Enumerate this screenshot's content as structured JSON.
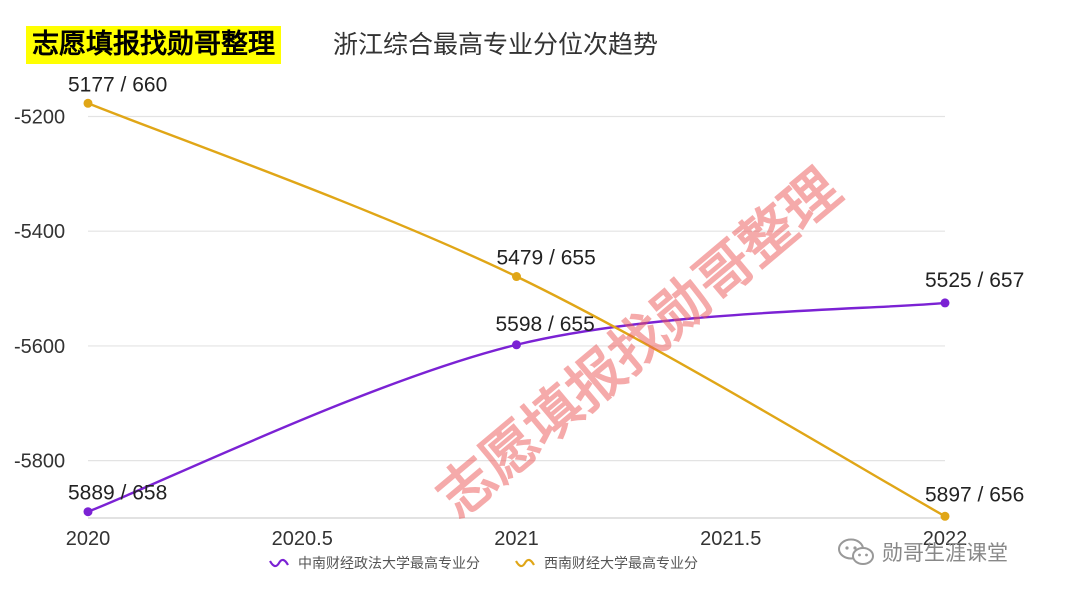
{
  "header": {
    "badge": "志愿填报找勋哥整理",
    "subtitle": "浙江综合最高专业分位次趋势"
  },
  "watermark": {
    "text": "志愿填报找勋哥整理"
  },
  "footer": {
    "account": "勋哥生涯课堂",
    "icon": "wechat-icon"
  },
  "chart_data": {
    "type": "line",
    "title": "",
    "xlabel": "",
    "ylabel": "",
    "x_ticks": [
      2020,
      2020.5,
      2021,
      2021.5,
      2022
    ],
    "y_ticks": [
      -5200,
      -5400,
      -5600,
      -5800
    ],
    "xlim": [
      2020,
      2022
    ],
    "ylim": [
      -5900,
      -5180
    ],
    "grid": true,
    "legend": "bottom",
    "series": [
      {
        "name": "中南财经政法大学最高专业分",
        "color": "#7b22d4",
        "points": [
          {
            "x": 2020,
            "y": -5889,
            "label": "5889 / 658"
          },
          {
            "x": 2021,
            "y": -5598,
            "label": "5598 / 655"
          },
          {
            "x": 2022,
            "y": -5525,
            "label": "5525 / 657"
          }
        ]
      },
      {
        "name": "西南财经大学最高专业分",
        "color": "#e0a617",
        "points": [
          {
            "x": 2020,
            "y": -5177,
            "label": "5177 / 660"
          },
          {
            "x": 2021,
            "y": -5479,
            "label": "5479 / 655"
          },
          {
            "x": 2022,
            "y": -5897,
            "label": "5897 / 656"
          }
        ]
      }
    ]
  }
}
